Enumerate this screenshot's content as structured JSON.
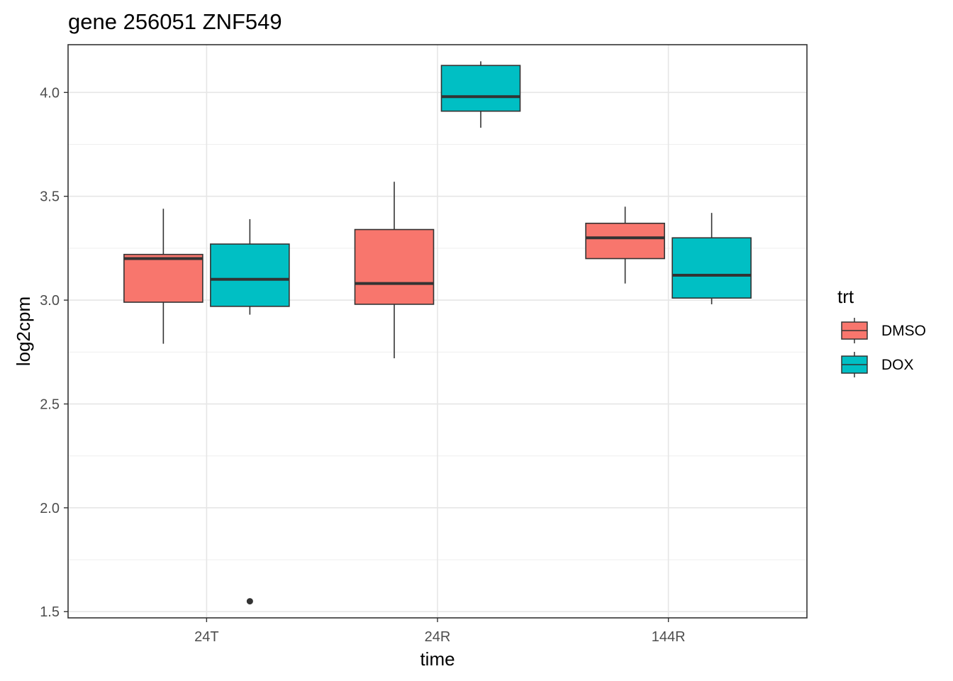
{
  "chart_data": {
    "type": "boxplot",
    "title": "gene 256051 ZNF549",
    "xlabel": "time",
    "ylabel": "log2cpm",
    "categories": [
      "24T",
      "24R",
      "144R"
    ],
    "ylim": [
      1.47,
      4.23
    ],
    "yticks": [
      1.5,
      2.0,
      2.5,
      3.0,
      3.5,
      4.0
    ],
    "ytick_labels": [
      "1.5",
      "2.0",
      "2.5",
      "3.0",
      "3.5",
      "4.0"
    ],
    "grid": true,
    "legend": {
      "title": "trt",
      "position": "right"
    },
    "series": [
      {
        "name": "DMSO",
        "color": "#F8766D",
        "boxes": [
          {
            "category": "24T",
            "min": 2.79,
            "q1": 2.99,
            "median": 3.2,
            "q3": 3.22,
            "max": 3.44,
            "outliers": []
          },
          {
            "category": "24R",
            "min": 2.72,
            "q1": 2.98,
            "median": 3.08,
            "q3": 3.34,
            "max": 3.57,
            "outliers": []
          },
          {
            "category": "144R",
            "min": 3.08,
            "q1": 3.2,
            "median": 3.3,
            "q3": 3.37,
            "max": 3.45,
            "outliers": []
          }
        ]
      },
      {
        "name": "DOX",
        "color": "#00BFC4",
        "boxes": [
          {
            "category": "24T",
            "min": 2.93,
            "q1": 2.97,
            "median": 3.1,
            "q3": 3.27,
            "max": 3.39,
            "outliers": [
              1.55
            ]
          },
          {
            "category": "24R",
            "min": 3.83,
            "q1": 3.91,
            "median": 3.98,
            "q3": 4.13,
            "max": 4.15,
            "outliers": []
          },
          {
            "category": "144R",
            "min": 2.98,
            "q1": 3.01,
            "median": 3.12,
            "q3": 3.3,
            "max": 3.42,
            "outliers": []
          }
        ]
      }
    ]
  }
}
